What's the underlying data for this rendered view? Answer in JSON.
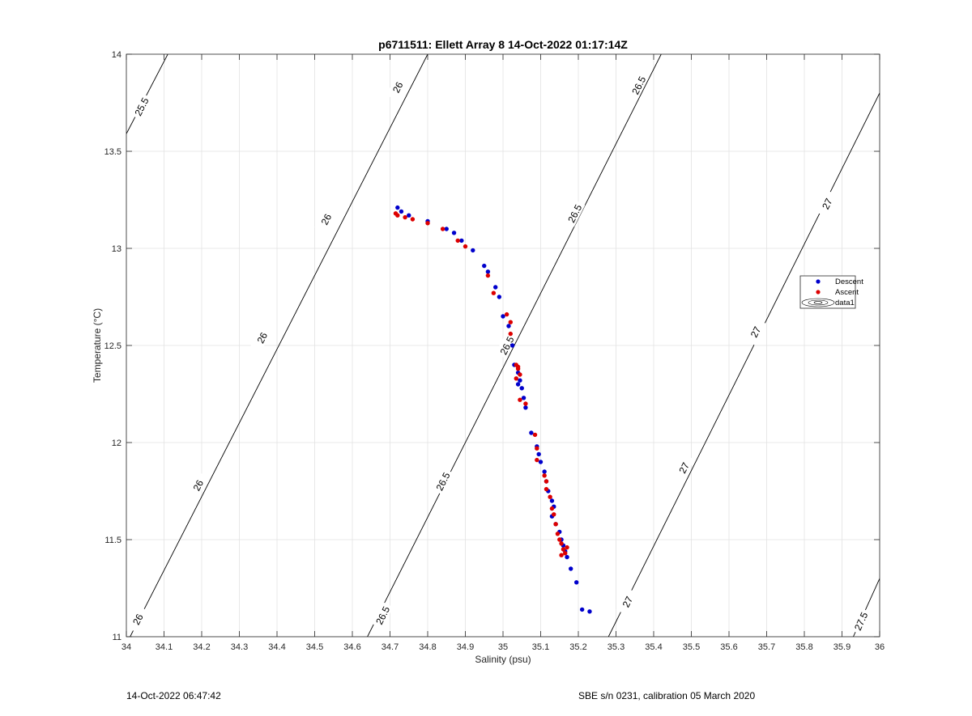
{
  "chart_data": {
    "type": "scatter",
    "title": "p6711511: Ellett Array 8 14-Oct-2022 01:17:14Z",
    "xlabel": "Salinity (psu)",
    "ylabel": "Temperature (°C)",
    "xlim": [
      34,
      36
    ],
    "ylim": [
      11,
      14
    ],
    "xticks": [
      34,
      34.1,
      34.2,
      34.3,
      34.4,
      34.5,
      34.6,
      34.7,
      34.8,
      34.9,
      35,
      35.1,
      35.2,
      35.3,
      35.4,
      35.5,
      35.6,
      35.7,
      35.8,
      35.9,
      36
    ],
    "xtick_labels": [
      "34",
      "34.1",
      "34.2",
      "34.3",
      "34.4",
      "34.5",
      "34.6",
      "34.7",
      "34.8",
      "34.9",
      "35",
      "35.1",
      "35.2",
      "35.3",
      "35.4",
      "35.5",
      "35.6",
      "35.7",
      "35.8",
      "35.9",
      "36"
    ],
    "yticks": [
      11,
      11.5,
      12,
      12.5,
      13,
      13.5,
      14
    ],
    "ytick_labels": [
      "11",
      "11.5",
      "12",
      "12.5",
      "13",
      "13.5",
      "14"
    ],
    "grid": true,
    "legend": {
      "placement": "right",
      "entries": [
        {
          "name": "Descent",
          "color": "#0000cc",
          "symbol": "dot"
        },
        {
          "name": "Ascent",
          "color": "#dd0000",
          "symbol": "dot"
        },
        {
          "name": "data1",
          "color": "#000000",
          "symbol": "contour"
        }
      ]
    },
    "contours": [
      {
        "label": "25.5",
        "points": [
          [
            34.0,
            13.59
          ],
          [
            34.11,
            14.0
          ]
        ],
        "label_positions": [
          [
            34.04,
            13.73
          ]
        ]
      },
      {
        "label": "26",
        "points": [
          [
            34.01,
            11.0
          ],
          [
            34.8,
            14.0
          ]
        ],
        "label_positions": [
          [
            34.03,
            11.09
          ],
          [
            34.19,
            11.78
          ],
          [
            34.36,
            12.54
          ],
          [
            34.53,
            13.15
          ],
          [
            34.72,
            13.83
          ]
        ]
      },
      {
        "label": "26.5",
        "points": [
          [
            34.64,
            11.0
          ],
          [
            35.42,
            14.0
          ]
        ],
        "label_positions": [
          [
            34.68,
            11.11
          ],
          [
            34.84,
            11.8
          ],
          [
            35.01,
            12.5
          ],
          [
            35.19,
            13.18
          ],
          [
            35.36,
            13.84
          ]
        ]
      },
      {
        "label": "27",
        "points": [
          [
            35.28,
            11.0
          ],
          [
            36.0,
            13.8
          ]
        ],
        "label_positions": [
          [
            35.33,
            11.18
          ],
          [
            35.48,
            11.87
          ],
          [
            35.67,
            12.57
          ],
          [
            35.86,
            13.23
          ]
        ]
      },
      {
        "label": "27.5",
        "points": [
          [
            35.93,
            11.0
          ],
          [
            36.0,
            11.3
          ]
        ],
        "label_positions": [
          [
            35.95,
            11.08
          ]
        ]
      }
    ],
    "series": [
      {
        "name": "Descent",
        "color": "#0000cc",
        "x": [
          34.72,
          34.73,
          34.75,
          34.8,
          34.85,
          34.87,
          34.89,
          34.92,
          34.95,
          34.96,
          34.98,
          34.99,
          35.0,
          35.015,
          35.025,
          35.03,
          35.04,
          35.045,
          35.05,
          35.055,
          35.04,
          35.06,
          35.075,
          35.09,
          35.095,
          35.1,
          35.11,
          35.115,
          35.12,
          35.13,
          35.135,
          35.13,
          35.14,
          35.15,
          35.155,
          35.16,
          35.165,
          35.17,
          35.18,
          35.195,
          35.21,
          35.23
        ],
        "y": [
          13.21,
          13.19,
          13.17,
          13.14,
          13.1,
          13.08,
          13.04,
          12.99,
          12.91,
          12.88,
          12.8,
          12.75,
          12.65,
          12.6,
          12.5,
          12.4,
          12.36,
          12.32,
          12.28,
          12.23,
          12.3,
          12.18,
          12.05,
          11.98,
          11.94,
          11.9,
          11.85,
          11.8,
          11.75,
          11.7,
          11.67,
          11.62,
          11.58,
          11.54,
          11.5,
          11.47,
          11.44,
          11.41,
          11.35,
          11.28,
          11.14,
          11.13
        ]
      },
      {
        "name": "Ascent",
        "color": "#dd0000",
        "x": [
          34.715,
          34.72,
          34.74,
          34.76,
          34.8,
          34.84,
          34.88,
          34.9,
          34.96,
          34.975,
          35.01,
          35.02,
          35.02,
          35.035,
          35.04,
          35.045,
          35.04,
          35.035,
          35.045,
          35.06,
          35.085,
          35.09,
          35.09,
          35.11,
          35.115,
          35.115,
          35.125,
          35.13,
          35.135,
          35.14,
          35.145,
          35.15,
          35.155,
          35.16,
          35.165,
          35.155,
          35.17
        ],
        "y": [
          13.18,
          13.17,
          13.16,
          13.15,
          13.13,
          13.1,
          13.04,
          13.01,
          12.86,
          12.77,
          12.66,
          12.62,
          12.56,
          12.4,
          12.38,
          12.35,
          12.39,
          12.33,
          12.22,
          12.2,
          12.04,
          11.97,
          11.91,
          11.83,
          11.8,
          11.76,
          11.72,
          11.66,
          11.63,
          11.58,
          11.53,
          11.5,
          11.48,
          11.45,
          11.43,
          11.42,
          11.46
        ]
      }
    ]
  },
  "footer": {
    "timestamp": "14-Oct-2022 06:47:42",
    "instrument": "SBE s/n 0231, calibration 05 March 2020"
  }
}
